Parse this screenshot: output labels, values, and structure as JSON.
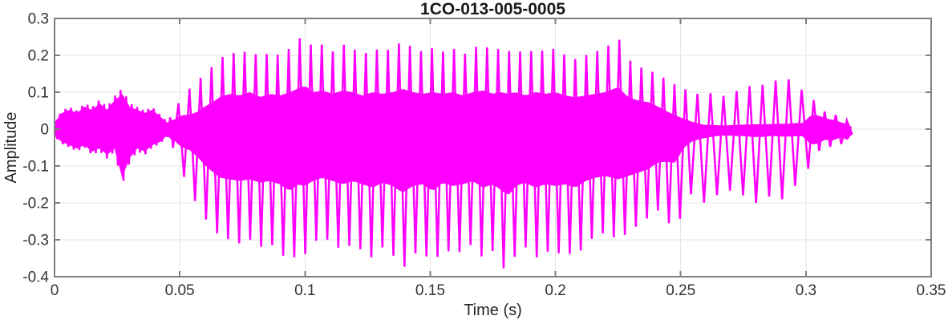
{
  "chart_data": {
    "type": "line",
    "title": "1CO-013-005-0005",
    "xlabel": "Time (s)",
    "ylabel": "Amplitude",
    "xlim": [
      0,
      0.35
    ],
    "ylim": [
      -0.4,
      0.3
    ],
    "grid": true,
    "legend": "none",
    "xticks": [
      0,
      0.05,
      0.1,
      0.15,
      0.2,
      0.25,
      0.3,
      0.35
    ],
    "xtick_labels": [
      "0",
      "0.05",
      "0.1",
      "0.15",
      "0.2",
      "0.25",
      "0.3",
      "0.35"
    ],
    "yticks": [
      0.3,
      0.2,
      0.1,
      0,
      -0.1,
      -0.2,
      -0.3,
      -0.4
    ],
    "ytick_labels": [
      "0.3",
      "0.2",
      "0.1",
      "0",
      "-0.1",
      "-0.2",
      "-0.3",
      "-0.4"
    ],
    "line_color": "#ff00ff",
    "axis_color": "#7f7f7f",
    "grid_color": "#e4e4e4",
    "tick_label_color": "#333333",
    "title_color": "#1a1a1a",
    "signal_end_s": 0.3185,
    "series": [
      {
        "name": "waveform",
        "representation": "amplitude-envelope",
        "t": [
          0,
          0.003,
          0.006,
          0.009,
          0.012,
          0.015,
          0.018,
          0.021,
          0.024,
          0.027,
          0.03,
          0.033,
          0.036,
          0.039,
          0.042,
          0.045,
          0.048,
          0.051,
          0.054,
          0.057,
          0.06,
          0.063,
          0.066,
          0.07,
          0.074,
          0.078,
          0.082,
          0.086,
          0.09,
          0.094,
          0.097,
          0.1,
          0.103,
          0.107,
          0.111,
          0.115,
          0.119,
          0.123,
          0.127,
          0.131,
          0.135,
          0.139,
          0.143,
          0.147,
          0.151,
          0.155,
          0.159,
          0.163,
          0.167,
          0.171,
          0.175,
          0.178,
          0.181,
          0.184,
          0.188,
          0.192,
          0.196,
          0.2,
          0.204,
          0.208,
          0.212,
          0.216,
          0.22,
          0.225,
          0.229,
          0.233,
          0.237,
          0.241,
          0.245,
          0.248,
          0.251,
          0.255,
          0.259,
          0.263,
          0.267,
          0.271,
          0.275,
          0.279,
          0.283,
          0.287,
          0.29,
          0.293,
          0.296,
          0.299,
          0.302,
          0.305,
          0.308,
          0.311,
          0.314,
          0.317,
          0.3185
        ],
        "upper": [
          0.02,
          0.05,
          0.06,
          0.05,
          0.07,
          0.06,
          0.08,
          0.06,
          0.09,
          0.11,
          0.07,
          0.06,
          0.05,
          0.06,
          0.04,
          0.02,
          0.05,
          0.09,
          0.11,
          0.13,
          0.15,
          0.17,
          0.19,
          0.21,
          0.2,
          0.22,
          0.19,
          0.21,
          0.2,
          0.22,
          0.24,
          0.26,
          0.22,
          0.23,
          0.21,
          0.23,
          0.22,
          0.2,
          0.22,
          0.21,
          0.22,
          0.24,
          0.22,
          0.21,
          0.22,
          0.21,
          0.22,
          0.2,
          0.22,
          0.23,
          0.21,
          0.22,
          0.21,
          0.22,
          0.2,
          0.22,
          0.21,
          0.22,
          0.2,
          0.19,
          0.2,
          0.21,
          0.22,
          0.25,
          0.19,
          0.17,
          0.16,
          0.15,
          0.13,
          0.12,
          0.11,
          0.1,
          0.09,
          0.1,
          0.09,
          0.1,
          0.11,
          0.12,
          0.12,
          0.13,
          0.135,
          0.135,
          0.13,
          0.1,
          0.09,
          0.06,
          0.045,
          0.04,
          0.035,
          0.02,
          0.01
        ],
        "lower": [
          -0.02,
          -0.04,
          -0.05,
          -0.06,
          -0.05,
          -0.07,
          -0.06,
          -0.08,
          -0.06,
          -0.15,
          -0.09,
          -0.06,
          -0.07,
          -0.05,
          -0.04,
          -0.02,
          -0.06,
          -0.12,
          -0.16,
          -0.21,
          -0.24,
          -0.27,
          -0.29,
          -0.3,
          -0.31,
          -0.3,
          -0.32,
          -0.31,
          -0.33,
          -0.37,
          -0.33,
          -0.34,
          -0.31,
          -0.29,
          -0.31,
          -0.33,
          -0.31,
          -0.33,
          -0.35,
          -0.32,
          -0.34,
          -0.38,
          -0.34,
          -0.33,
          -0.37,
          -0.32,
          -0.34,
          -0.33,
          -0.31,
          -0.35,
          -0.33,
          -0.36,
          -0.4,
          -0.34,
          -0.32,
          -0.35,
          -0.33,
          -0.34,
          -0.33,
          -0.35,
          -0.31,
          -0.29,
          -0.28,
          -0.3,
          -0.28,
          -0.26,
          -0.24,
          -0.22,
          -0.25,
          -0.3,
          -0.2,
          -0.17,
          -0.2,
          -0.19,
          -0.16,
          -0.17,
          -0.18,
          -0.2,
          -0.2,
          -0.17,
          -0.19,
          -0.19,
          -0.15,
          -0.12,
          -0.1,
          -0.06,
          -0.045,
          -0.05,
          -0.04,
          -0.06,
          -0.015
        ],
        "core_fill": [
          0.85,
          0.85,
          0.85,
          0.85,
          0.85,
          0.85,
          0.85,
          0.85,
          0.85,
          0.85,
          0.85,
          0.85,
          0.85,
          0.85,
          0.85,
          0.8,
          0.5,
          0.4,
          0.35,
          0.35,
          0.4,
          0.42,
          0.45,
          0.45,
          0.45,
          0.45,
          0.45,
          0.45,
          0.45,
          0.45,
          0.45,
          0.45,
          0.45,
          0.45,
          0.45,
          0.45,
          0.45,
          0.45,
          0.45,
          0.45,
          0.45,
          0.45,
          0.45,
          0.45,
          0.45,
          0.45,
          0.45,
          0.45,
          0.45,
          0.45,
          0.45,
          0.45,
          0.45,
          0.45,
          0.45,
          0.45,
          0.45,
          0.45,
          0.45,
          0.45,
          0.45,
          0.45,
          0.45,
          0.45,
          0.45,
          0.45,
          0.45,
          0.4,
          0.35,
          0.3,
          0.25,
          0.18,
          0.12,
          0.1,
          0.1,
          0.1,
          0.1,
          0.1,
          0.1,
          0.1,
          0.1,
          0.1,
          0.12,
          0.15,
          0.4,
          0.6,
          0.6,
          0.6,
          0.5,
          0.5,
          0.5
        ]
      }
    ]
  }
}
